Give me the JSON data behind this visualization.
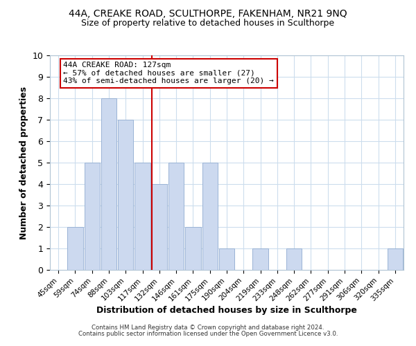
{
  "title1": "44A, CREAKE ROAD, SCULTHORPE, FAKENHAM, NR21 9NQ",
  "title2": "Size of property relative to detached houses in Sculthorpe",
  "xlabel": "Distribution of detached houses by size in Sculthorpe",
  "ylabel": "Number of detached properties",
  "categories": [
    "45sqm",
    "59sqm",
    "74sqm",
    "88sqm",
    "103sqm",
    "117sqm",
    "132sqm",
    "146sqm",
    "161sqm",
    "175sqm",
    "190sqm",
    "204sqm",
    "219sqm",
    "233sqm",
    "248sqm",
    "262sqm",
    "277sqm",
    "291sqm",
    "306sqm",
    "320sqm",
    "335sqm"
  ],
  "values": [
    0,
    2,
    5,
    8,
    7,
    5,
    4,
    5,
    2,
    5,
    1,
    0,
    1,
    0,
    1,
    0,
    0,
    0,
    0,
    0,
    1
  ],
  "bar_color": "#ccd9ef",
  "bar_edge_color": "#9ab3d5",
  "vline_color": "#cc0000",
  "annotation_title": "44A CREAKE ROAD: 127sqm",
  "annotation_line1": "← 57% of detached houses are smaller (27)",
  "annotation_line2": "43% of semi-detached houses are larger (20) →",
  "annotation_box_color": "#ffffff",
  "annotation_box_edge": "#cc0000",
  "ylim": [
    0,
    10
  ],
  "grid_color": "#ccdded",
  "footer1": "Contains HM Land Registry data © Crown copyright and database right 2024.",
  "footer2": "Contains public sector information licensed under the Open Government Licence v3.0."
}
